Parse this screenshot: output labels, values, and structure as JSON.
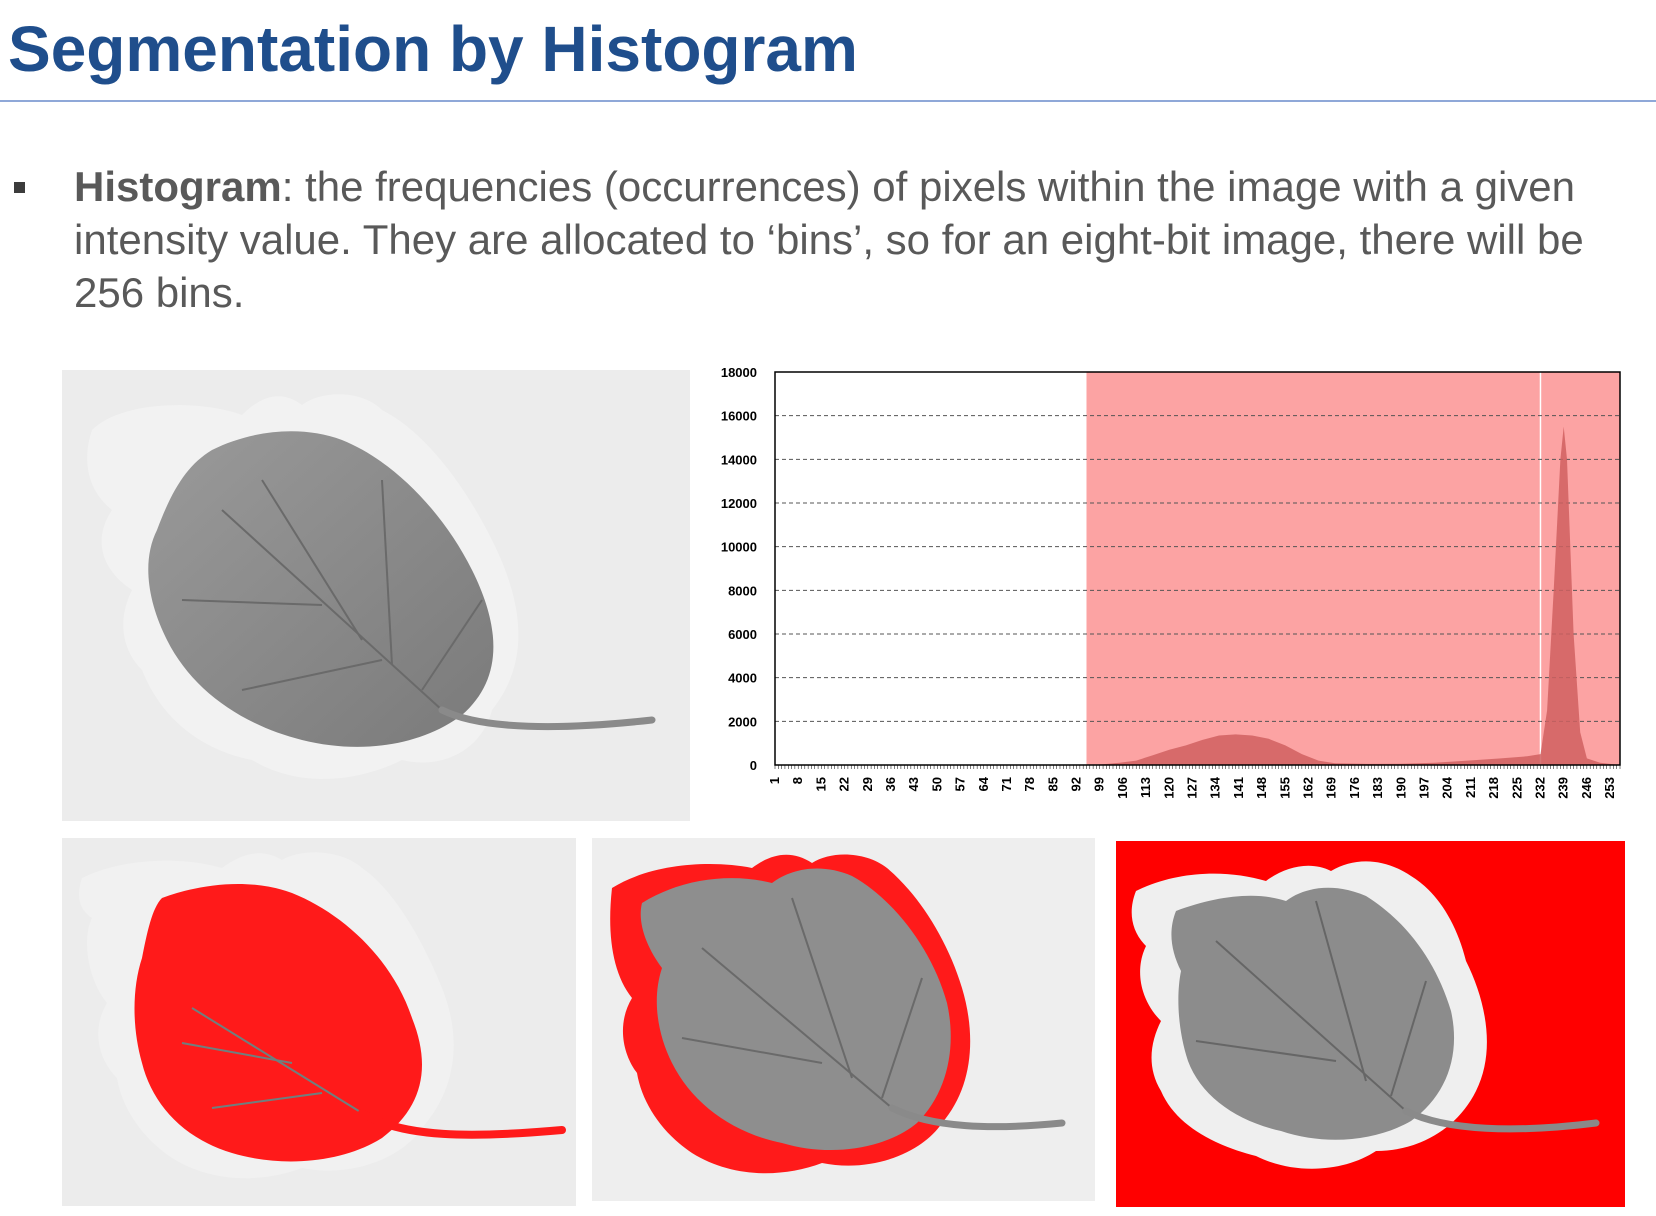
{
  "slide": {
    "title": "Segmentation by Histogram",
    "bullet": {
      "term": "Histogram",
      "text": ": the frequencies (occurrences) of pixels within the image with a given intensity value. They are allocated to ‘bins’, so for an eight-bit image, there will be 256 bins."
    }
  },
  "colors": {
    "title": "#1f4e8c",
    "highlight": "#ff0000",
    "histogram_fill": "#d06060"
  },
  "chart_data": {
    "type": "area",
    "y_ticks": [
      0,
      2000,
      4000,
      6000,
      8000,
      10000,
      12000,
      14000,
      16000,
      18000
    ],
    "ylim": [
      0,
      18000
    ],
    "x_ticks": [
      1,
      8,
      15,
      22,
      29,
      36,
      43,
      50,
      57,
      64,
      71,
      78,
      85,
      92,
      99,
      106,
      113,
      120,
      127,
      134,
      141,
      148,
      155,
      162,
      169,
      176,
      183,
      190,
      197,
      204,
      211,
      218,
      225,
      232,
      239,
      246,
      253
    ],
    "xlim": [
      1,
      256
    ],
    "grid": true,
    "shaded_ranges": [
      [
        95,
        232
      ],
      [
        232,
        256
      ]
    ],
    "series": [
      {
        "x": [
          1,
          95,
          100,
          105,
          110,
          115,
          120,
          125,
          130,
          135,
          140,
          145,
          150,
          155,
          160,
          165,
          170,
          180,
          190,
          200,
          210,
          220,
          228,
          232,
          234,
          236,
          238,
          239,
          240,
          241,
          242,
          244,
          246,
          250,
          256
        ],
        "values": [
          0,
          0,
          30,
          100,
          200,
          450,
          700,
          900,
          1150,
          1350,
          1400,
          1350,
          1200,
          900,
          500,
          200,
          80,
          50,
          60,
          100,
          200,
          300,
          400,
          500,
          2500,
          8000,
          14000,
          15500,
          14000,
          10000,
          6000,
          1500,
          300,
          100,
          0
        ]
      }
    ]
  }
}
